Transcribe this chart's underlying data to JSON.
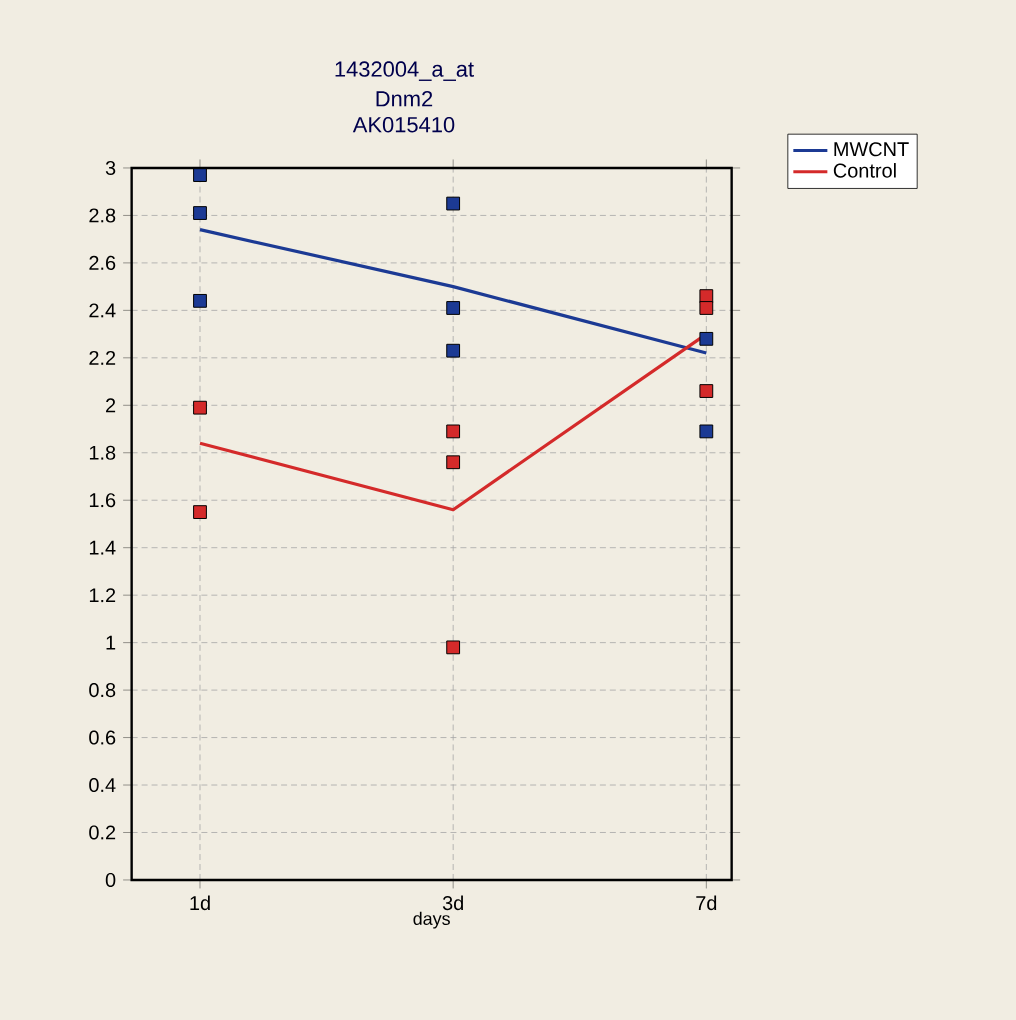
{
  "chart_data": {
    "type": "line",
    "title": "1432004_a_at",
    "subtitle": "Dnm2 AK015410",
    "xlabel": "days",
    "categories": [
      "1d",
      "3d",
      "7d"
    ],
    "series": [
      {
        "name": "MWCNT",
        "color": "#1c3a94",
        "values": [
          2.74,
          2.5,
          2.22
        ]
      },
      {
        "name": "Control",
        "color": "#d42a2a",
        "values": [
          1.84,
          1.56,
          2.3
        ]
      },
      {
        "type": "scatter",
        "marker": "square",
        "color": "#1c3a94",
        "x": [
          "1d",
          "1d",
          "1d",
          "3d",
          "3d",
          "3d",
          "7d",
          "7d"
        ],
        "values": [
          2.97,
          2.81,
          2.44,
          2.85,
          2.41,
          2.23,
          2.28,
          1.89
        ]
      },
      {
        "type": "scatter",
        "marker": "square",
        "color": "#d42a2a",
        "x": [
          "1d",
          "1d",
          "3d",
          "3d",
          "3d",
          "7d",
          "7d",
          "7d"
        ],
        "values": [
          1.99,
          1.55,
          1.89,
          1.76,
          0.98,
          2.46,
          2.41,
          2.06
        ]
      }
    ],
    "ylim": [
      0,
      3
    ],
    "yticks": [
      0,
      0.2,
      0.4,
      0.6,
      0.8,
      1,
      1.2,
      1.4,
      1.6,
      1.8,
      2,
      2.2,
      2.4,
      2.6,
      2.8,
      3
    ],
    "grid": true,
    "legend": "top right"
  }
}
